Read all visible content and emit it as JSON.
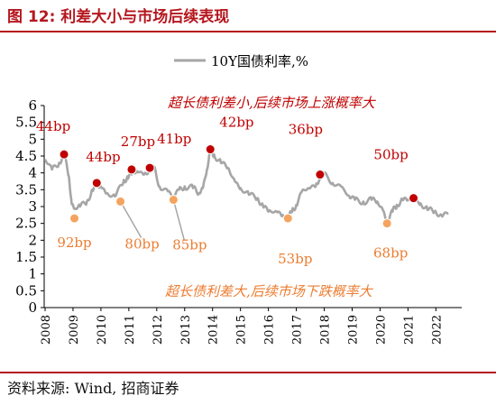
{
  "figure_title": "图 12:  利差大小与市场后续表现",
  "source": "资料来源:  Wind, 招商证券",
  "colors": {
    "accent": "#b5161d",
    "line": "#a6a6a6",
    "high_spread": "#c00000",
    "low_spread": "#f4a460",
    "high_spread_text": "#c00000",
    "low_spread_text": "#ed7d31"
  },
  "chart_data": {
    "type": "line",
    "series": [
      {
        "name": "10Y国债利率,%",
        "x": [
          2008.0,
          2008.25,
          2008.5,
          2008.68,
          2008.85,
          2008.95,
          2009.05,
          2009.25,
          2009.5,
          2009.7,
          2009.85,
          2010.0,
          2010.2,
          2010.5,
          2010.8,
          2010.95,
          2011.1,
          2011.3,
          2011.55,
          2011.75,
          2011.9,
          2012.1,
          2012.4,
          2012.6,
          2012.8,
          2013.0,
          2013.3,
          2013.5,
          2013.65,
          2013.8,
          2013.92,
          2014.05,
          2014.3,
          2014.55,
          2014.8,
          2015.0,
          2015.3,
          2015.6,
          2015.8,
          2016.0,
          2016.3,
          2016.5,
          2016.7,
          2016.85,
          2017.0,
          2017.2,
          2017.45,
          2017.7,
          2017.85,
          2018.0,
          2018.3,
          2018.6,
          2018.9,
          2019.1,
          2019.4,
          2019.7,
          2019.9,
          2020.1,
          2020.25,
          2020.45,
          2020.6,
          2020.8,
          2021.0,
          2021.2,
          2021.45,
          2021.7,
          2021.95,
          2022.2,
          2022.45
        ],
        "values": [
          4.4,
          4.1,
          4.3,
          4.55,
          3.9,
          3.1,
          2.95,
          3.0,
          3.15,
          3.5,
          3.6,
          3.6,
          3.4,
          3.3,
          3.7,
          3.9,
          3.95,
          4.05,
          3.95,
          4.1,
          4.15,
          3.6,
          3.45,
          3.3,
          3.5,
          3.6,
          3.55,
          3.4,
          3.55,
          4.1,
          4.65,
          4.55,
          4.3,
          4.15,
          3.75,
          3.55,
          3.35,
          3.25,
          3.05,
          2.85,
          2.85,
          2.75,
          2.65,
          2.85,
          3.05,
          3.45,
          3.55,
          3.6,
          3.9,
          3.95,
          3.7,
          3.6,
          3.3,
          3.2,
          3.15,
          3.2,
          3.15,
          2.9,
          2.55,
          2.85,
          3.05,
          3.2,
          3.2,
          3.25,
          3.1,
          2.9,
          2.85,
          2.75,
          2.8
        ]
      }
    ],
    "xlim": [
      2008,
      2022.7
    ],
    "ylim": [
      0,
      6
    ],
    "ytick_step": 0.5,
    "ytick_labels": [
      "0",
      "0.5",
      "1",
      "1.5",
      "2",
      "2.5",
      "3",
      "3.5",
      "4",
      "4.5",
      "5",
      "5.5",
      "6"
    ],
    "xtick_labels": [
      "2008",
      "2009",
      "2010",
      "2011",
      "2012",
      "2013",
      "2014",
      "2015",
      "2016",
      "2017",
      "2018",
      "2019",
      "2020",
      "2021",
      "2022"
    ],
    "legend": "top-center",
    "grid": false,
    "markers_high": [
      {
        "x": 2008.68,
        "y": 4.55,
        "label": "44bp"
      },
      {
        "x": 2009.85,
        "y": 3.7,
        "label": "44bp"
      },
      {
        "x": 2011.1,
        "y": 4.1,
        "label": "27bp"
      },
      {
        "x": 2011.75,
        "y": 4.15,
        "label": "41bp"
      },
      {
        "x": 2013.92,
        "y": 4.7,
        "label": "42bp"
      },
      {
        "x": 2017.85,
        "y": 3.95,
        "label": "36bp"
      },
      {
        "x": 2021.2,
        "y": 3.25,
        "label": "50bp"
      }
    ],
    "markers_low": [
      {
        "x": 2009.05,
        "y": 2.65,
        "label": "92bp"
      },
      {
        "x": 2010.7,
        "y": 3.15,
        "label": "80bp"
      },
      {
        "x": 2012.6,
        "y": 3.2,
        "label": "85bp"
      },
      {
        "x": 2016.7,
        "y": 2.65,
        "label": "53bp"
      },
      {
        "x": 2020.25,
        "y": 2.5,
        "label": "68bp"
      }
    ],
    "annotations": {
      "top": "超长债利差小,后续市场上涨概率大",
      "bottom": "超长债利差大,后续市场下跌概率大"
    }
  }
}
